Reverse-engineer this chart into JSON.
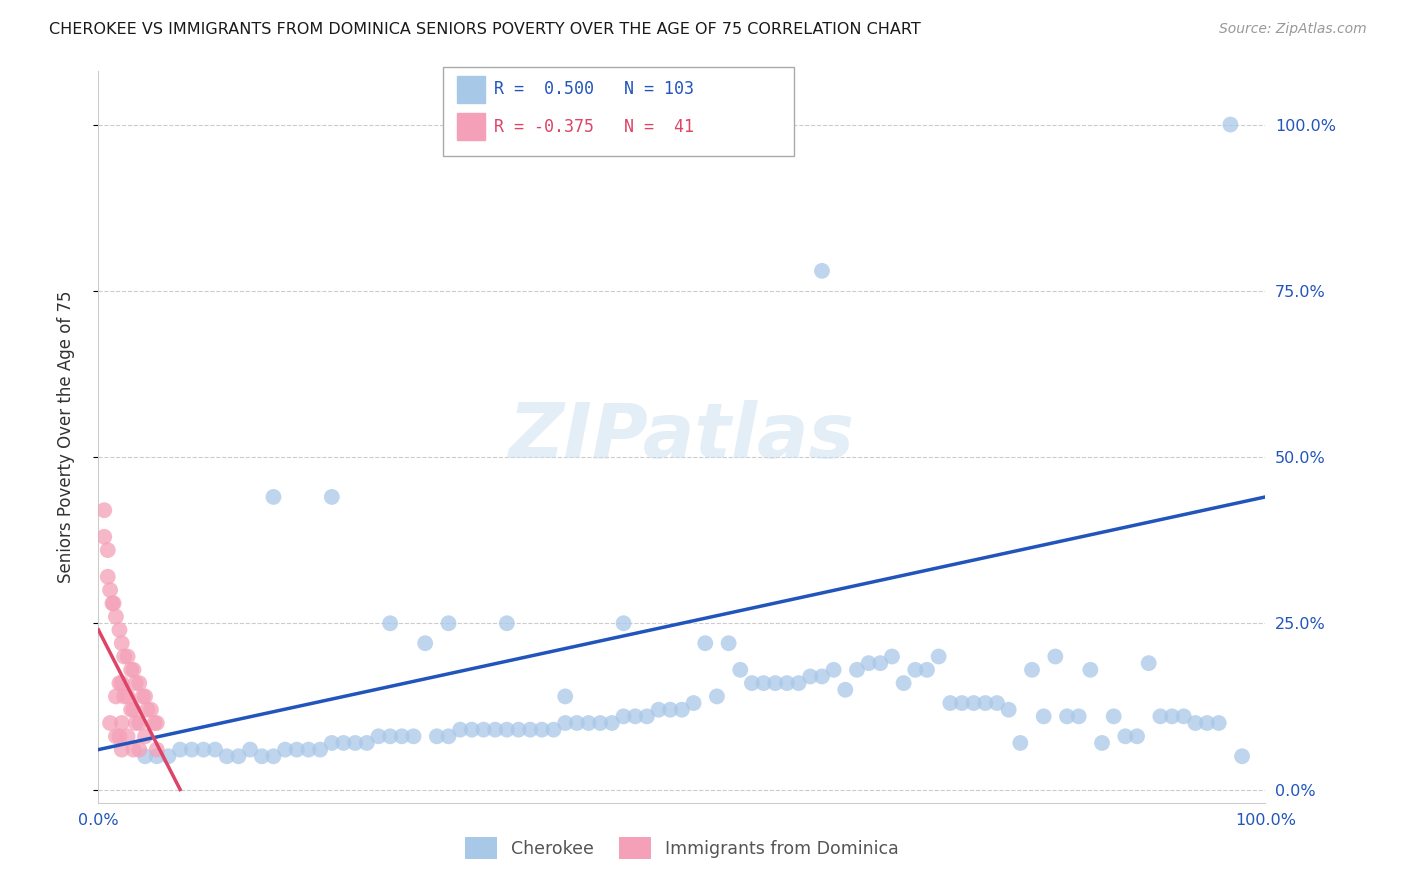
{
  "title": "CHEROKEE VS IMMIGRANTS FROM DOMINICA SENIORS POVERTY OVER THE AGE OF 75 CORRELATION CHART",
  "source": "Source: ZipAtlas.com",
  "ylabel": "Seniors Poverty Over the Age of 75",
  "xlim": [
    0.0,
    1.0
  ],
  "ylim": [
    -0.02,
    1.08
  ],
  "yticks": [
    0.0,
    0.25,
    0.5,
    0.75,
    1.0
  ],
  "ytick_labels": [
    "0.0%",
    "25.0%",
    "50.0%",
    "75.0%",
    "100.0%"
  ],
  "xticks": [
    0.0,
    0.25,
    0.5,
    0.75,
    1.0
  ],
  "xtick_labels": [
    "0.0%",
    "",
    "",
    "",
    "100.0%"
  ],
  "cherokee_color": "#a8c8e8",
  "dominica_color": "#f4a0b8",
  "cherokee_line_color": "#2255bb",
  "dominica_line_color": "#dd4466",
  "R_cherokee": 0.5,
  "N_cherokee": 103,
  "R_dominica": -0.375,
  "N_dominica": 41,
  "watermark": "ZIPatlas",
  "cherokee_label": "Cherokee",
  "dominica_label": "Immigrants from Dominica",
  "cherokee_scatter_x": [
    0.97,
    0.62,
    0.04,
    0.05,
    0.06,
    0.07,
    0.08,
    0.09,
    0.1,
    0.11,
    0.12,
    0.13,
    0.14,
    0.15,
    0.16,
    0.17,
    0.18,
    0.19,
    0.2,
    0.21,
    0.22,
    0.23,
    0.24,
    0.25,
    0.26,
    0.27,
    0.28,
    0.29,
    0.3,
    0.31,
    0.32,
    0.33,
    0.34,
    0.35,
    0.36,
    0.37,
    0.38,
    0.39,
    0.4,
    0.41,
    0.42,
    0.43,
    0.44,
    0.45,
    0.46,
    0.47,
    0.48,
    0.49,
    0.5,
    0.51,
    0.52,
    0.53,
    0.54,
    0.55,
    0.56,
    0.57,
    0.58,
    0.59,
    0.6,
    0.61,
    0.62,
    0.63,
    0.64,
    0.65,
    0.66,
    0.67,
    0.68,
    0.69,
    0.7,
    0.71,
    0.72,
    0.73,
    0.74,
    0.75,
    0.76,
    0.77,
    0.78,
    0.79,
    0.8,
    0.81,
    0.82,
    0.83,
    0.84,
    0.85,
    0.86,
    0.87,
    0.88,
    0.89,
    0.9,
    0.91,
    0.92,
    0.93,
    0.94,
    0.95,
    0.96,
    0.98,
    0.15,
    0.2,
    0.25,
    0.3,
    0.35,
    0.4,
    0.45
  ],
  "cherokee_scatter_y": [
    1.0,
    0.78,
    0.05,
    0.05,
    0.05,
    0.06,
    0.06,
    0.06,
    0.06,
    0.05,
    0.05,
    0.06,
    0.05,
    0.05,
    0.06,
    0.06,
    0.06,
    0.06,
    0.07,
    0.07,
    0.07,
    0.07,
    0.08,
    0.08,
    0.08,
    0.08,
    0.22,
    0.08,
    0.08,
    0.09,
    0.09,
    0.09,
    0.09,
    0.09,
    0.09,
    0.09,
    0.09,
    0.09,
    0.1,
    0.1,
    0.1,
    0.1,
    0.1,
    0.11,
    0.11,
    0.11,
    0.12,
    0.12,
    0.12,
    0.13,
    0.22,
    0.14,
    0.22,
    0.18,
    0.16,
    0.16,
    0.16,
    0.16,
    0.16,
    0.17,
    0.17,
    0.18,
    0.15,
    0.18,
    0.19,
    0.19,
    0.2,
    0.16,
    0.18,
    0.18,
    0.2,
    0.13,
    0.13,
    0.13,
    0.13,
    0.13,
    0.12,
    0.07,
    0.18,
    0.11,
    0.2,
    0.11,
    0.11,
    0.18,
    0.07,
    0.11,
    0.08,
    0.08,
    0.19,
    0.11,
    0.11,
    0.11,
    0.1,
    0.1,
    0.1,
    0.05,
    0.44,
    0.44,
    0.25,
    0.25,
    0.25,
    0.14,
    0.25
  ],
  "dominica_scatter_x": [
    0.005,
    0.008,
    0.01,
    0.01,
    0.012,
    0.013,
    0.015,
    0.015,
    0.015,
    0.018,
    0.018,
    0.018,
    0.02,
    0.02,
    0.02,
    0.02,
    0.022,
    0.022,
    0.025,
    0.025,
    0.025,
    0.028,
    0.028,
    0.03,
    0.03,
    0.03,
    0.032,
    0.032,
    0.035,
    0.035,
    0.035,
    0.038,
    0.04,
    0.04,
    0.042,
    0.045,
    0.048,
    0.05,
    0.05,
    0.005,
    0.008
  ],
  "dominica_scatter_y": [
    0.38,
    0.32,
    0.3,
    0.1,
    0.28,
    0.28,
    0.26,
    0.14,
    0.08,
    0.24,
    0.16,
    0.08,
    0.22,
    0.16,
    0.1,
    0.06,
    0.2,
    0.14,
    0.2,
    0.14,
    0.08,
    0.18,
    0.12,
    0.18,
    0.12,
    0.06,
    0.16,
    0.1,
    0.16,
    0.1,
    0.06,
    0.14,
    0.14,
    0.08,
    0.12,
    0.12,
    0.1,
    0.1,
    0.06,
    0.42,
    0.36
  ],
  "cherokee_line_x0": 0.0,
  "cherokee_line_y0": 0.06,
  "cherokee_line_x1": 1.0,
  "cherokee_line_y1": 0.44,
  "dominica_line_x0": 0.0,
  "dominica_line_y0": 0.24,
  "dominica_line_x1": 0.07,
  "dominica_line_y1": 0.0
}
